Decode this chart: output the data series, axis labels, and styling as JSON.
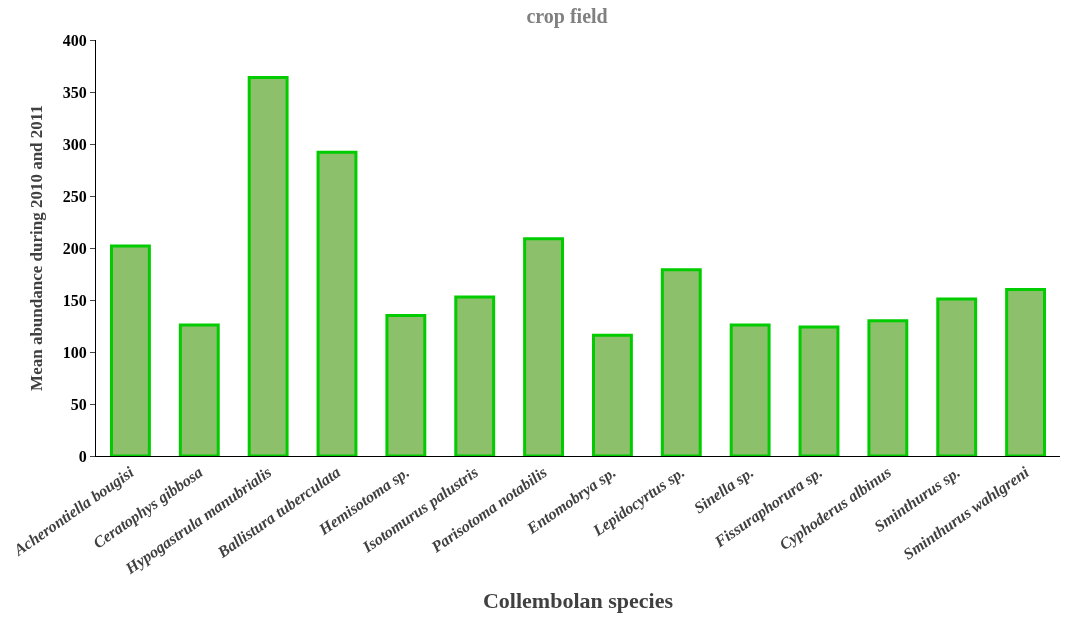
{
  "chart_data": {
    "type": "bar",
    "title": "crop field",
    "xlabel": "Collembolan species",
    "ylabel": "Mean abundance during 2010 and 2011",
    "categories": [
      "Acherontiella bougisi",
      "Ceratophys gibbosa",
      "Hypogastrula manubrialis",
      "Ballistura tuberculata",
      "Hemisotoma sp.",
      "Isotomurus palustris",
      "Parisotoma notabilis",
      "Entomobrya sp.",
      "Lepidocyrtus sp.",
      "Sinella sp.",
      "Fissuraphorura sp.",
      "Cyphoderus albinus",
      "Sminthurus sp.",
      "Sminthurus wahlgreni"
    ],
    "values": [
      202,
      126,
      364,
      292,
      135,
      153,
      209,
      116,
      179,
      126,
      124,
      130,
      151,
      160
    ],
    "color": "#8cc06a",
    "ylim": [
      0,
      400
    ],
    "yticks": [
      0,
      50,
      100,
      150,
      200,
      250,
      300,
      350,
      400
    ]
  }
}
